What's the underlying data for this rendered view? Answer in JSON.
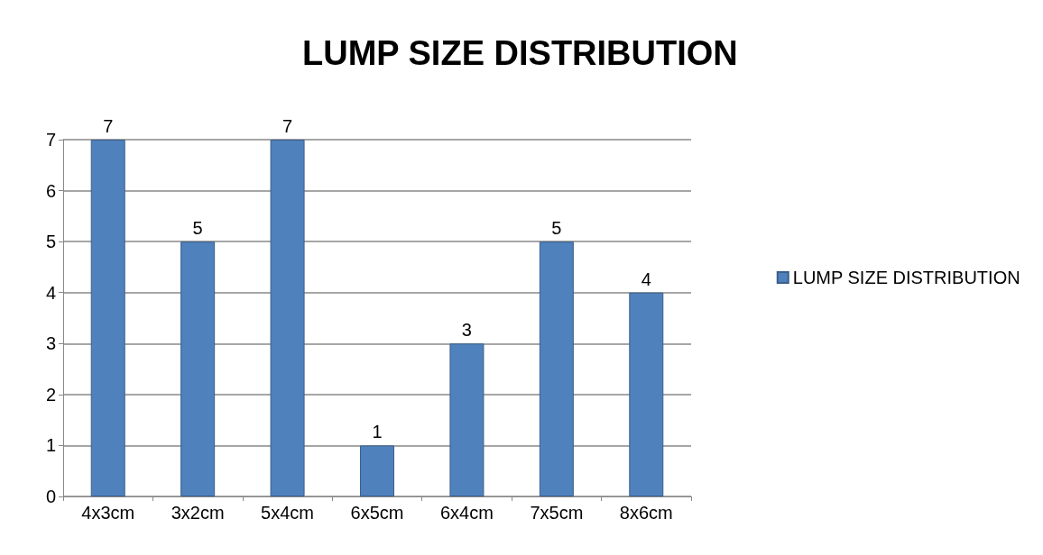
{
  "chart_data": {
    "type": "bar",
    "title": "LUMP SIZE DISTRIBUTION",
    "categories": [
      "4x3cm",
      "3x2cm",
      "5x4cm",
      "6x5cm",
      "6x4cm",
      "7x5cm",
      "8x6cm"
    ],
    "series": [
      {
        "name": "LUMP SIZE DISTRIBUTION",
        "color": "#4f81bd",
        "values": [
          7,
          5,
          7,
          1,
          3,
          5,
          4
        ]
      }
    ],
    "ylim": [
      0,
      7
    ],
    "yticks": [
      0,
      1,
      2,
      3,
      4,
      5,
      6,
      7
    ],
    "grid": "y",
    "legend": "right",
    "data_labels": true
  }
}
